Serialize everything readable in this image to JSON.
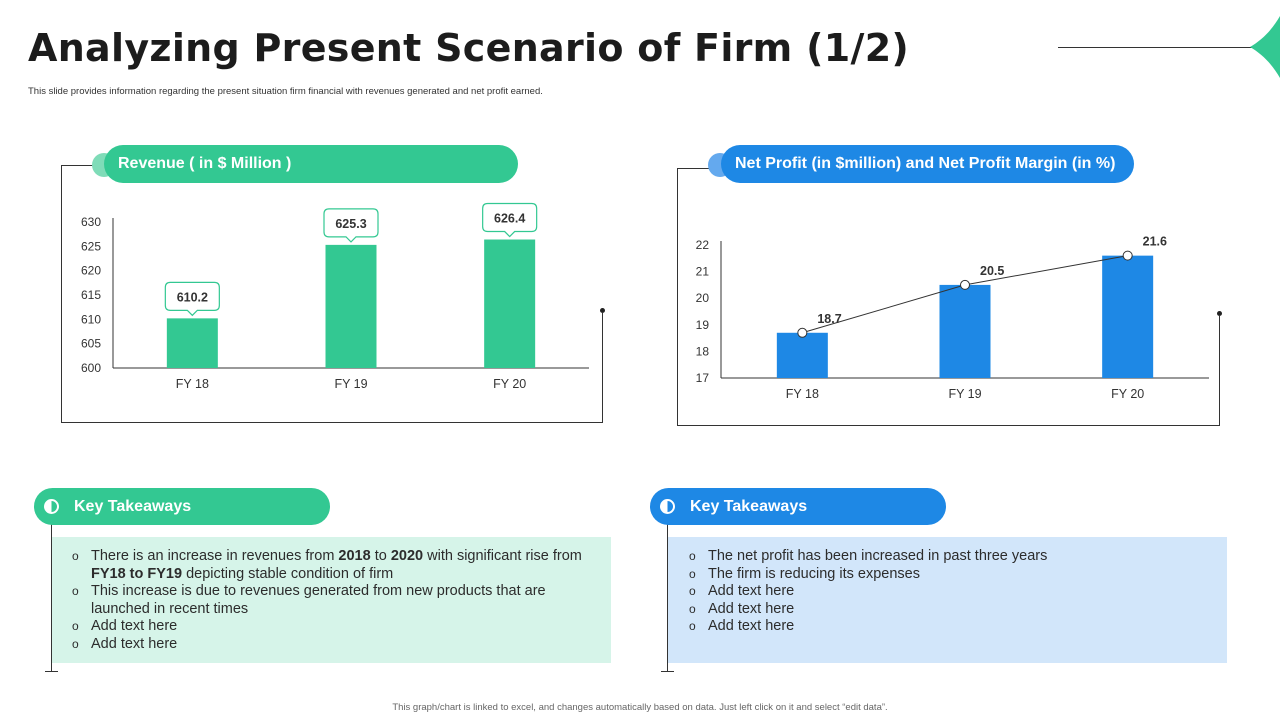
{
  "slide": {
    "title": "Analyzing Present Scenario of Firm (1/2)",
    "subtitle": "This slide provides information regarding the present situation firm financial with revenues generated and net profit earned.",
    "footer": "This graph/chart is linked to excel, and changes automatically based on data. Just left click on it and select “edit data”."
  },
  "colors": {
    "green": "#33c892",
    "blue": "#1e88e5",
    "green_light": "#d6f4e9",
    "blue_light": "#d2e6fa"
  },
  "revenue_panel": {
    "header": "Revenue ( in $ Million )"
  },
  "net_profit_panel": {
    "header": "Net Profit (in $million) and Net Profit Margin (in %)"
  },
  "chart_data": [
    {
      "type": "bar",
      "title": "Revenue ( in $ Million )",
      "categories": [
        "FY 18",
        "FY 19",
        "FY 20"
      ],
      "values": [
        610.2,
        625.3,
        626.4
      ],
      "data_labels": [
        "610.2",
        "625.3",
        "626.4"
      ],
      "ylim": [
        600,
        630
      ],
      "yticks": [
        600,
        605,
        610,
        615,
        620,
        625,
        630
      ],
      "color": "#33c892",
      "grid": false
    },
    {
      "type": "bar",
      "title": "Net Profit (in $million) and Net Profit Margin (in %)",
      "categories": [
        "FY 18",
        "FY 19",
        "FY 20"
      ],
      "values": [
        18.7,
        20.5,
        21.6
      ],
      "data_labels": [
        "18.7",
        "20.5",
        "21.6"
      ],
      "line_overlay": [
        18.7,
        20.5,
        21.6
      ],
      "ylim": [
        17,
        22
      ],
      "yticks": [
        17,
        18,
        19,
        20,
        21,
        22
      ],
      "color": "#1e88e5",
      "grid": false
    }
  ],
  "takeaways_left": {
    "header": "Key Takeaways",
    "items": [
      [
        {
          "t": "There is an increase in revenues from ",
          "b": false
        },
        {
          "t": "2018",
          "b": true
        },
        {
          "t": " to ",
          "b": false
        },
        {
          "t": "2020",
          "b": true
        },
        {
          "t": " with significant rise from ",
          "b": false
        },
        {
          "t": "FY18 to FY19",
          "b": true
        },
        {
          "t": " depicting stable condition of firm",
          "b": false
        }
      ],
      [
        {
          "t": "This increase is due to revenues generated from new products that are launched in recent times",
          "b": false
        }
      ],
      [
        {
          "t": "Add text here",
          "b": false
        }
      ],
      [
        {
          "t": "Add text here",
          "b": false
        }
      ]
    ]
  },
  "takeaways_right": {
    "header": "Key Takeaways",
    "items": [
      [
        {
          "t": "The net profit has been increased in past three years",
          "b": false
        }
      ],
      [
        {
          "t": "The firm is reducing its expenses",
          "b": false
        }
      ],
      [
        {
          "t": "Add text here",
          "b": false
        }
      ],
      [
        {
          "t": "Add text here",
          "b": false
        }
      ],
      [
        {
          "t": "Add text here",
          "b": false
        }
      ]
    ]
  }
}
